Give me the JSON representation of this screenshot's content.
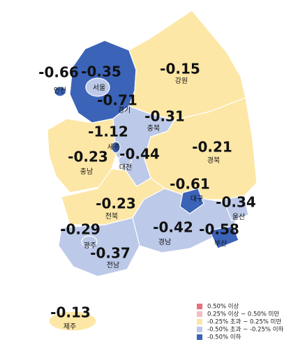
{
  "regions": [
    {
      "name": "경기",
      "value": -0.71,
      "color": "#3b63b7"
    },
    {
      "name": "강원",
      "value": -0.15,
      "color": "#fde7a6"
    },
    {
      "name": "충북",
      "value": -0.31,
      "color": "#bcc9e8"
    },
    {
      "name": "충남",
      "value": -0.23,
      "color": "#fde7a6"
    },
    {
      "name": "경북",
      "value": -0.21,
      "color": "#fde7a6"
    },
    {
      "name": "전북",
      "value": -0.23,
      "color": "#fde7a6"
    },
    {
      "name": "경남",
      "value": -0.42,
      "color": "#bcc9e8"
    },
    {
      "name": "전남",
      "value": -0.37,
      "color": "#bcc9e8"
    },
    {
      "name": "인천",
      "value": -0.66,
      "color": "#3b63b7"
    },
    {
      "name": "서울",
      "value": -0.35,
      "color": "#bcc9e8"
    },
    {
      "name": "세종",
      "value": -1.12,
      "color": "#3b63b7"
    },
    {
      "name": "대전",
      "value": -0.44,
      "color": "#bcc9e8"
    },
    {
      "name": "대구",
      "value": -0.61,
      "color": "#3b63b7"
    },
    {
      "name": "울산",
      "value": -0.34,
      "color": "#bcc9e8"
    },
    {
      "name": "부산",
      "value": -0.58,
      "color": "#3b63b7"
    },
    {
      "name": "광주",
      "value": -0.29,
      "color": "#bcc9e8"
    },
    {
      "name": "제주",
      "value": -0.13,
      "color": "#fde7a6"
    }
  ],
  "legend": [
    {
      "label": "0.50% 이상",
      "color": "#e8707c"
    },
    {
      "label": "0.25% 이상 ~ 0.50% 미만",
      "color": "#f5bcc4"
    },
    {
      "label": "-0.25% 초과 ~ 0.25% 미만",
      "color": "#fde7a6"
    },
    {
      "label": "-0.50% 초과 ~ -0.25% 이하",
      "color": "#bcc9e8"
    },
    {
      "label": "-0.50% 이하",
      "color": "#3b63b7"
    }
  ]
}
